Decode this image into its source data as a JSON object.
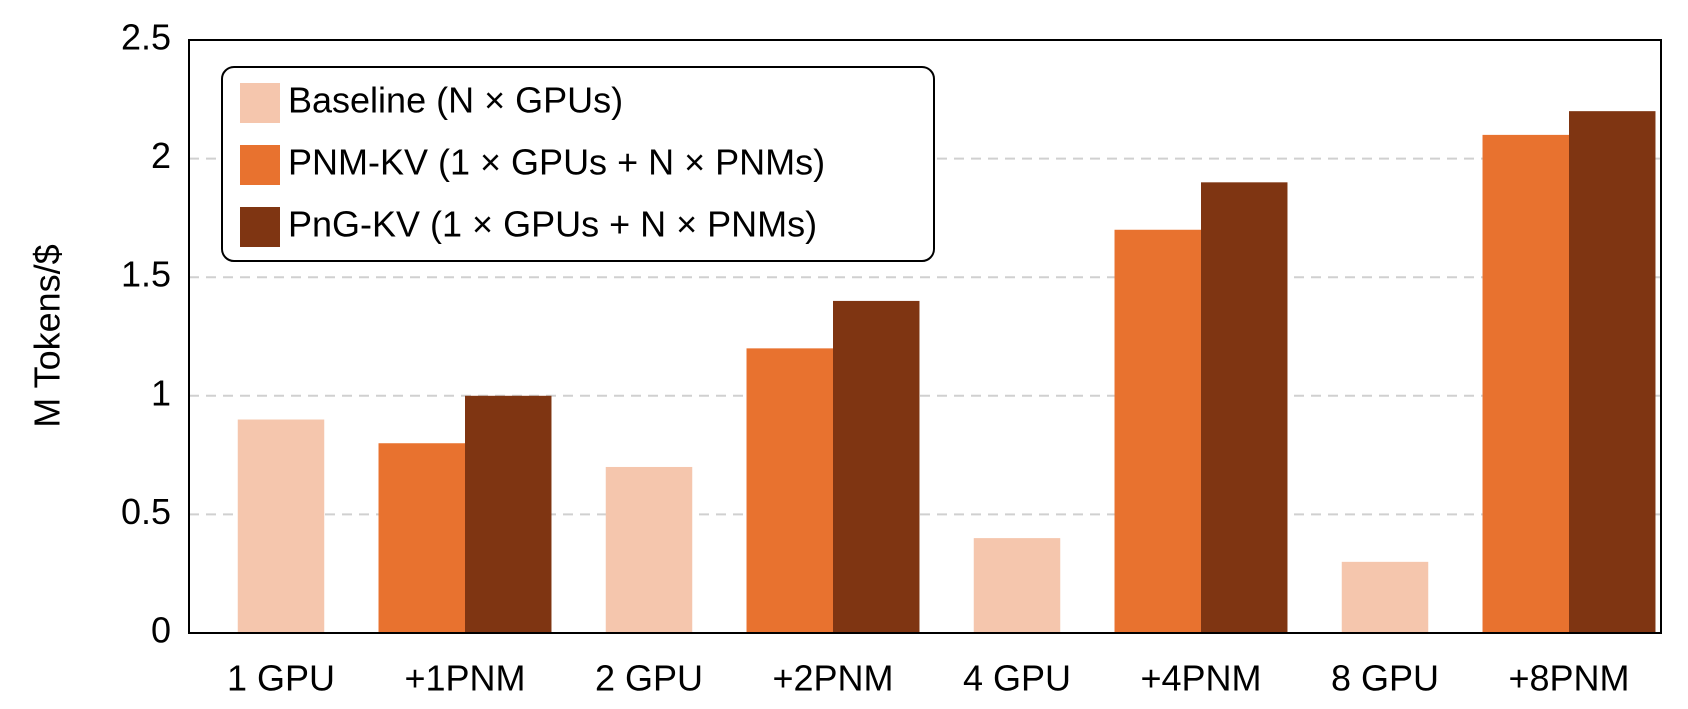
{
  "chart_data": {
    "type": "bar",
    "y_label": "M Tokens/$",
    "categories": [
      "1 GPU",
      "+1PNM",
      "2 GPU",
      "+2PNM",
      "4 GPU",
      "+4PNM",
      "8 GPU",
      "+8PNM"
    ],
    "series": [
      {
        "name": "Baseline (N × GPUs)",
        "color": "#f5c6ad",
        "values": [
          0.9,
          null,
          0.7,
          null,
          0.4,
          null,
          0.3,
          null
        ]
      },
      {
        "name": "PNM-KV (1 × GPUs + N × PNMs)",
        "color": "#e8722f",
        "values": [
          null,
          0.8,
          null,
          1.2,
          null,
          1.7,
          null,
          2.1
        ]
      },
      {
        "name": "PnG-KV (1 × GPUs + N × PNMs)",
        "color": "#7f3512",
        "values": [
          null,
          1.0,
          null,
          1.4,
          null,
          1.9,
          null,
          2.2
        ]
      }
    ],
    "ylim": [
      0,
      2.5
    ],
    "yticks": [
      0,
      0.5,
      1,
      1.5,
      2,
      2.5
    ],
    "grid": true,
    "legend": "upper left"
  }
}
